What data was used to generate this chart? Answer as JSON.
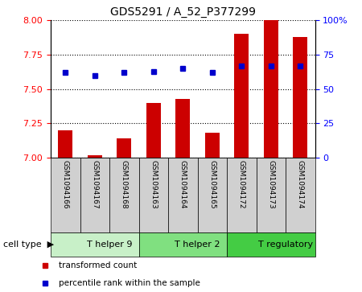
{
  "title": "GDS5291 / A_52_P377299",
  "samples": [
    "GSM1094166",
    "GSM1094167",
    "GSM1094168",
    "GSM1094163",
    "GSM1094164",
    "GSM1094165",
    "GSM1094172",
    "GSM1094173",
    "GSM1094174"
  ],
  "transformed_count": [
    7.2,
    7.02,
    7.14,
    7.4,
    7.43,
    7.18,
    7.9,
    8.0,
    7.88
  ],
  "percentile_rank": [
    62,
    60,
    62,
    63,
    65,
    62,
    67,
    67,
    67
  ],
  "cell_groups": [
    {
      "label": "T helper 9",
      "start": 0,
      "end": 3,
      "color": "#b8f0b8"
    },
    {
      "label": "T helper 2",
      "start": 3,
      "end": 6,
      "color": "#80e880"
    },
    {
      "label": "T regulatory",
      "start": 6,
      "end": 9,
      "color": "#44cc44"
    }
  ],
  "ylim_left": [
    7.0,
    8.0
  ],
  "ylim_right": [
    0,
    100
  ],
  "yticks_left": [
    7.0,
    7.25,
    7.5,
    7.75,
    8.0
  ],
  "yticks_right": [
    0,
    25,
    50,
    75,
    100
  ],
  "bar_color": "#cc0000",
  "dot_color": "#0000cc",
  "bar_width": 0.5,
  "group_colors": [
    "#c8f0c8",
    "#80e080",
    "#44cc44"
  ],
  "sample_box_color": "#d0d0d0",
  "legend_items": [
    {
      "color": "#cc0000",
      "label": "transformed count"
    },
    {
      "color": "#0000cc",
      "label": "percentile rank within the sample"
    }
  ]
}
